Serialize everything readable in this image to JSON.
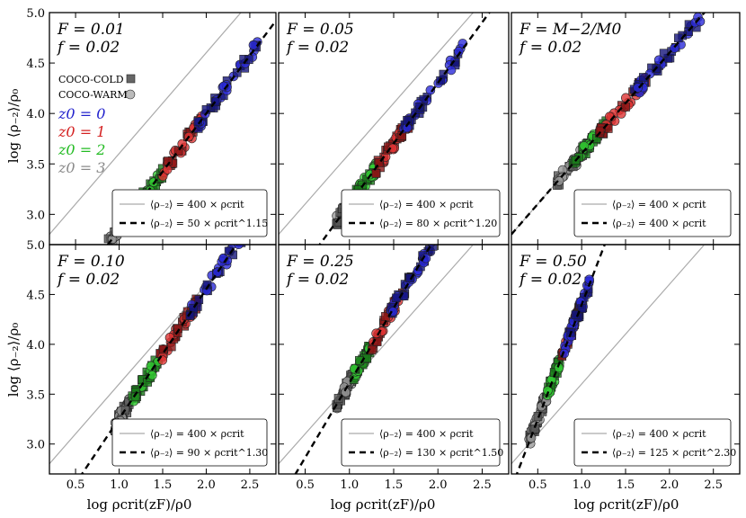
{
  "figure": {
    "ylabel": "log ⟨ρ₋₂⟩/ρ₀",
    "xlabel": "log ρcrit(zF)/ρ0",
    "legend_sim": [
      "COCO-COLD",
      "COCO-WARM"
    ],
    "legend_z": [
      {
        "label": "z0 = 0",
        "color": "#1f1fcc"
      },
      {
        "label": "z0 = 1",
        "color": "#d42020"
      },
      {
        "label": "z0 = 2",
        "color": "#22bb22"
      },
      {
        "label": "z0 = 3",
        "color": "#8a8a8a"
      }
    ]
  },
  "chart_data": [
    {
      "type": "scatter",
      "title": "F = 0.01",
      "subtitle": "f = 0.02",
      "xlim": [
        0.2,
        2.8
      ],
      "ylim": [
        2.7,
        5.0
      ],
      "xticks": [],
      "yticks": [
        "3.0",
        "3.5",
        "4.0",
        "4.5",
        "5.0"
      ],
      "ref_line": {
        "label": "⟨ρ₋₂⟩ = 400 × ρcrit",
        "y_at_x0": 2.6021,
        "slope": 1.0
      },
      "fit_line": {
        "label": "⟨ρ₋₂⟩ = 50 × ρcrit^1.15",
        "y_at_x0": 1.699,
        "slope": 1.15
      },
      "groups": [
        {
          "name": "z0 = 3",
          "x": [
            0.85,
            1.15
          ],
          "color": "#9a9a9a",
          "dark": "#555555"
        },
        {
          "name": "z0 = 2",
          "x": [
            1.15,
            1.5
          ],
          "color": "#33cc33",
          "dark": "#1a7a1a"
        },
        {
          "name": "z0 = 1",
          "x": [
            1.5,
            1.95
          ],
          "color": "#dd3333",
          "dark": "#8a1515"
        },
        {
          "name": "z0 = 0",
          "x": [
            1.9,
            2.6
          ],
          "color": "#2b2bd9",
          "dark": "#14147a"
        }
      ]
    },
    {
      "type": "scatter",
      "title": "F = 0.05",
      "subtitle": "f = 0.02",
      "xlim": [
        0.2,
        2.8
      ],
      "ylim": [
        2.7,
        5.0
      ],
      "xticks": [],
      "yticks": [],
      "ref_line": {
        "label": "⟨ρ₋₂⟩ = 400 × ρcrit",
        "y_at_x0": 2.6021,
        "slope": 1.0
      },
      "fit_line": {
        "label": "⟨ρ₋₂⟩ = 80 × ρcrit^1.20",
        "y_at_x0": 1.903,
        "slope": 1.2
      },
      "groups": [
        {
          "name": "z0 = 3",
          "x": [
            0.85,
            1.05
          ],
          "color": "#9a9a9a",
          "dark": "#555555"
        },
        {
          "name": "z0 = 2",
          "x": [
            1.05,
            1.3
          ],
          "color": "#33cc33",
          "dark": "#1a7a1a"
        },
        {
          "name": "z0 = 1",
          "x": [
            1.3,
            1.7
          ],
          "color": "#dd3333",
          "dark": "#8a1515"
        },
        {
          "name": "z0 = 0",
          "x": [
            1.6,
            2.3
          ],
          "color": "#2b2bd9",
          "dark": "#14147a"
        }
      ]
    },
    {
      "type": "scatter",
      "title": "F = M−2/M0",
      "subtitle": "f = 0.02",
      "xlim": [
        0.2,
        2.8
      ],
      "ylim": [
        2.7,
        5.0
      ],
      "xticks": [],
      "yticks": [],
      "ref_line": {
        "label": "⟨ρ₋₂⟩ = 400 × ρcrit",
        "y_at_x0": 2.6021,
        "slope": 1.0
      },
      "fit_line": {
        "label": "⟨ρ₋₂⟩ = 400 × ρcrit",
        "y_at_x0": 2.6021,
        "slope": 1.0
      },
      "groups": [
        {
          "name": "z0 = 3",
          "x": [
            0.7,
            1.1
          ],
          "color": "#9a9a9a",
          "dark": "#555555"
        },
        {
          "name": "z0 = 2",
          "x": [
            0.9,
            1.3
          ],
          "color": "#33cc33",
          "dark": "#1a7a1a"
        },
        {
          "name": "z0 = 1",
          "x": [
            1.2,
            1.75
          ],
          "color": "#dd3333",
          "dark": "#8a1515"
        },
        {
          "name": "z0 = 0",
          "x": [
            1.55,
            2.35
          ],
          "color": "#2b2bd9",
          "dark": "#14147a"
        }
      ]
    },
    {
      "type": "scatter",
      "title": "F = 0.10",
      "subtitle": "f = 0.02",
      "xlim": [
        0.2,
        2.8
      ],
      "ylim": [
        2.7,
        5.0
      ],
      "xticks": [
        "0.5",
        "1.0",
        "1.5",
        "2.0",
        "2.5"
      ],
      "yticks": [
        "3.0",
        "3.5",
        "4.0",
        "4.5",
        "5.0"
      ],
      "ref_line": {
        "label": "⟨ρ₋₂⟩ = 400 × ρcrit",
        "y_at_x0": 2.6021,
        "slope": 1.0
      },
      "fit_line": {
        "label": "⟨ρ₋₂⟩ = 90 × ρcrit^1.30",
        "y_at_x0": 1.954,
        "slope": 1.3
      },
      "groups": [
        {
          "name": "z0 = 3",
          "x": [
            0.95,
            1.15
          ],
          "color": "#9a9a9a",
          "dark": "#555555"
        },
        {
          "name": "z0 = 2",
          "x": [
            1.15,
            1.45
          ],
          "color": "#33cc33",
          "dark": "#1a7a1a"
        },
        {
          "name": "z0 = 1",
          "x": [
            1.45,
            1.9
          ],
          "color": "#dd3333",
          "dark": "#8a1515"
        },
        {
          "name": "z0 = 0",
          "x": [
            1.8,
            2.5
          ],
          "color": "#2b2bd9",
          "dark": "#14147a"
        }
      ]
    },
    {
      "type": "scatter",
      "title": "F = 0.25",
      "subtitle": "f = 0.02",
      "xlim": [
        0.2,
        2.8
      ],
      "ylim": [
        2.7,
        5.0
      ],
      "xticks": [
        "0.5",
        "1.0",
        "1.5",
        "2.0",
        "2.5"
      ],
      "yticks": [],
      "ref_line": {
        "label": "⟨ρ₋₂⟩ = 400 × ρcrit",
        "y_at_x0": 2.6021,
        "slope": 1.0
      },
      "fit_line": {
        "label": "⟨ρ₋₂⟩ = 130 × ρcrit^1.50",
        "y_at_x0": 2.114,
        "slope": 1.5
      },
      "groups": [
        {
          "name": "z0 = 3",
          "x": [
            0.85,
            1.05
          ],
          "color": "#9a9a9a",
          "dark": "#555555"
        },
        {
          "name": "z0 = 2",
          "x": [
            1.05,
            1.25
          ],
          "color": "#33cc33",
          "dark": "#1a7a1a"
        },
        {
          "name": "z0 = 1",
          "x": [
            1.25,
            1.6
          ],
          "color": "#dd3333",
          "dark": "#8a1515"
        },
        {
          "name": "z0 = 0",
          "x": [
            1.45,
            1.95
          ],
          "color": "#2b2bd9",
          "dark": "#14147a"
        }
      ]
    },
    {
      "type": "scatter",
      "title": "F = 0.50",
      "subtitle": "f = 0.02",
      "xlim": [
        0.2,
        2.8
      ],
      "ylim": [
        2.7,
        5.0
      ],
      "xticks": [
        "0.5",
        "1.0",
        "1.5",
        "2.0",
        "2.5"
      ],
      "yticks": [],
      "ref_line": {
        "label": "⟨ρ₋₂⟩ = 400 × ρcrit",
        "y_at_x0": 2.6021,
        "slope": 1.0
      },
      "fit_line": {
        "label": "⟨ρ₋₂⟩ = 125 × ρcrit^2.30",
        "y_at_x0": 2.097,
        "slope": 2.3
      },
      "groups": [
        {
          "name": "z0 = 3",
          "x": [
            0.4,
            0.6
          ],
          "color": "#9a9a9a",
          "dark": "#555555"
        },
        {
          "name": "z0 = 2",
          "x": [
            0.6,
            0.75
          ],
          "color": "#33cc33",
          "dark": "#1a7a1a"
        },
        {
          "name": "z0 = 1",
          "x": [
            0.75,
            1.0
          ],
          "color": "#dd3333",
          "dark": "#8a1515"
        },
        {
          "name": "z0 = 0",
          "x": [
            0.8,
            1.1
          ],
          "color": "#2b2bd9",
          "dark": "#14147a"
        }
      ]
    }
  ]
}
